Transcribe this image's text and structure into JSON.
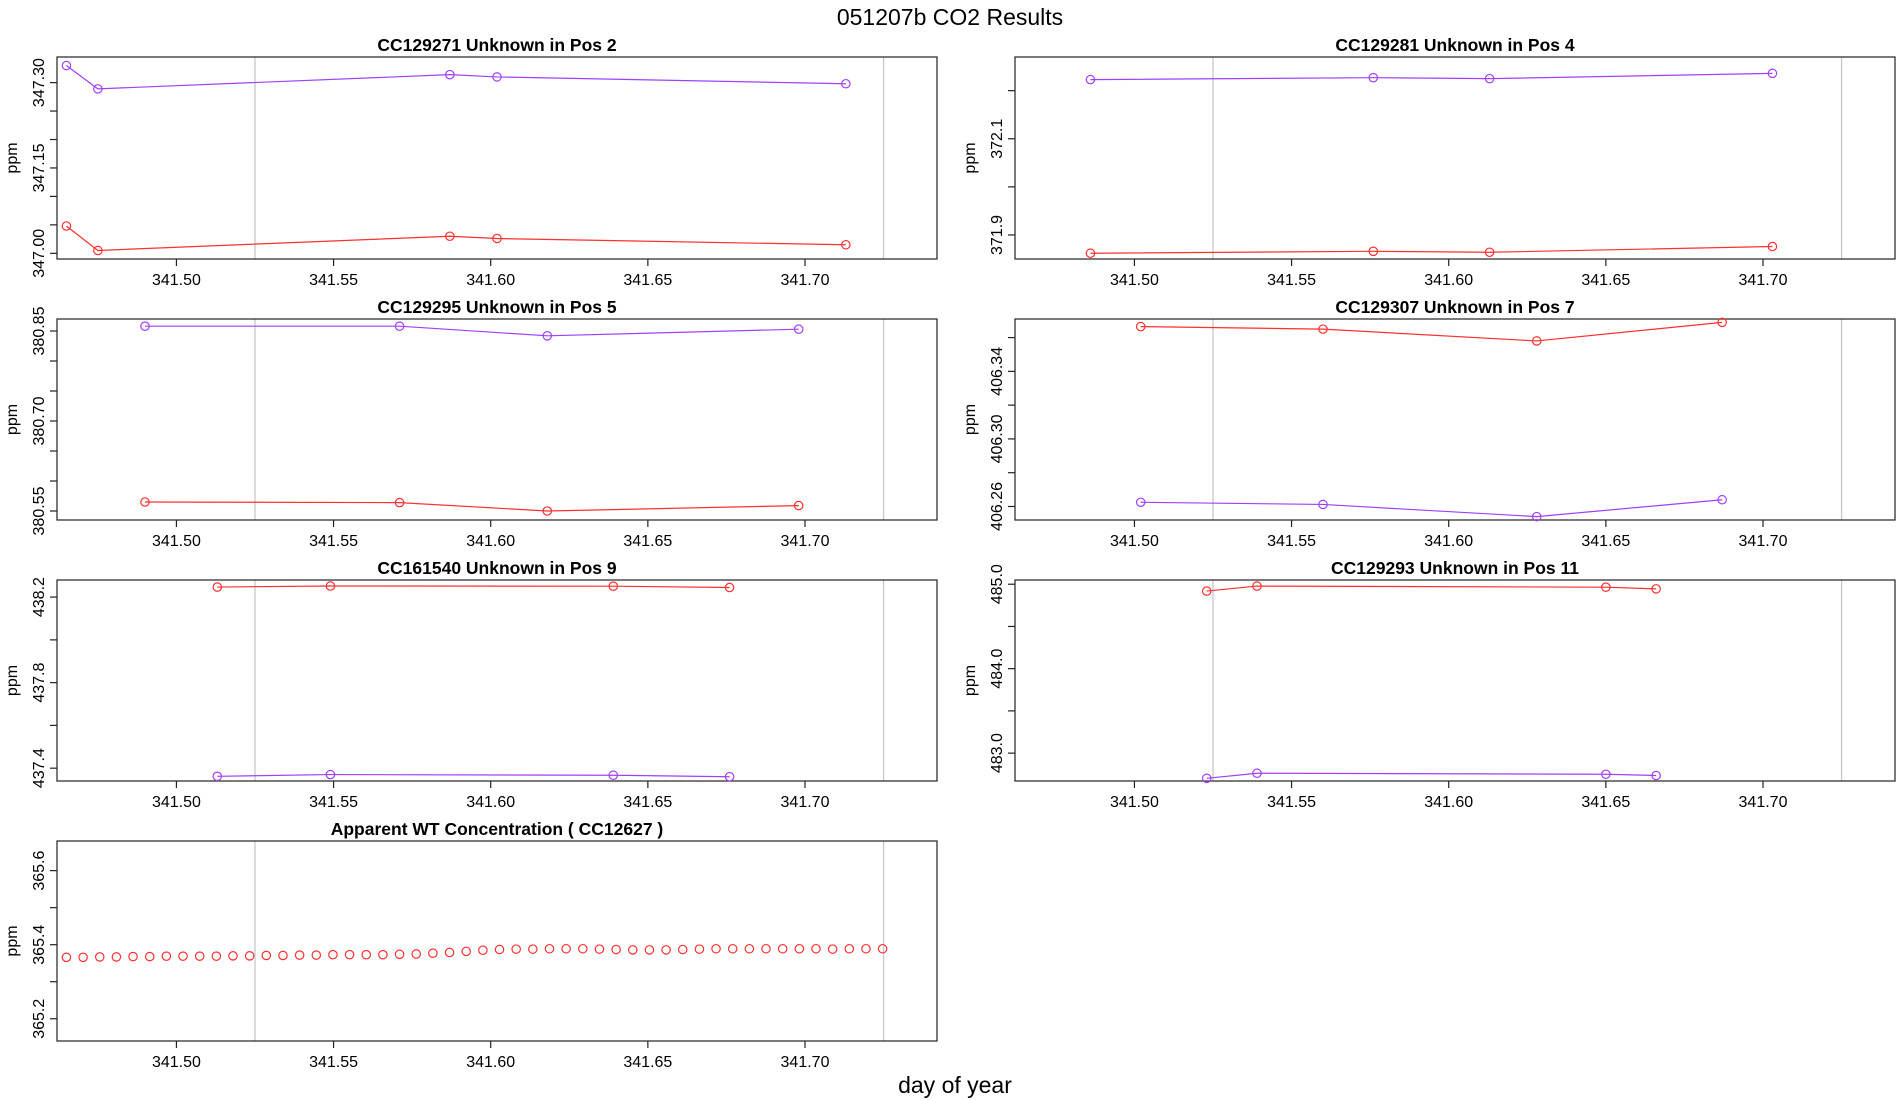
{
  "page_title": "051207b  CO2 Results",
  "x_axis_title": "day of year",
  "colors": {
    "red": "#ff3030",
    "purple": "#a040ff",
    "ref_line": "#c8c8c8"
  },
  "chart_data": [
    {
      "type": "line",
      "title": "CC129271    Unknown in Pos 2",
      "ylabel": "ppm",
      "xlim": [
        341.462,
        341.742
      ],
      "ylim": [
        346.99,
        347.345
      ],
      "x_ticks": [
        "341.50",
        "341.55",
        "341.60",
        "341.65",
        "341.70"
      ],
      "y_ticks": [
        "347.00",
        "347.15",
        "347.30"
      ],
      "y_minor_ticks": [
        347.05,
        347.1,
        347.2,
        347.25
      ],
      "ref_lines_x": [
        341.525,
        341.725
      ],
      "series": [
        {
          "color": "#a040ff",
          "x": [
            341.465,
            341.475,
            341.587,
            341.602,
            341.713
          ],
          "y": [
            347.33,
            347.289,
            347.314,
            347.31,
            347.298
          ]
        },
        {
          "color": "#ff3030",
          "x": [
            341.465,
            341.475,
            341.587,
            341.602,
            341.713
          ],
          "y": [
            347.048,
            347.005,
            347.03,
            347.026,
            347.015
          ]
        }
      ]
    },
    {
      "type": "line",
      "title": "CC129281    Unknown in Pos 4",
      "ylabel": "ppm",
      "xlim": [
        341.462,
        341.742
      ],
      "ylim": [
        371.85,
        372.27
      ],
      "x_ticks": [
        "341.50",
        "341.55",
        "341.60",
        "341.65",
        "341.70"
      ],
      "y_ticks": [
        "371.9",
        "372.1"
      ],
      "y_minor_ticks": [
        372.0,
        372.2
      ],
      "ref_lines_x": [
        341.525,
        341.725
      ],
      "series": [
        {
          "color": "#a040ff",
          "x": [
            341.486,
            341.576,
            341.613,
            341.703
          ],
          "y": [
            372.223,
            372.227,
            372.225,
            372.236
          ]
        },
        {
          "color": "#ff3030",
          "x": [
            341.486,
            341.576,
            341.613,
            341.703
          ],
          "y": [
            371.862,
            371.866,
            371.864,
            371.876
          ]
        }
      ]
    },
    {
      "type": "line",
      "title": "CC129295    Unknown in Pos 5",
      "ylabel": "ppm",
      "xlim": [
        341.462,
        341.742
      ],
      "ylim": [
        380.535,
        380.87
      ],
      "x_ticks": [
        "341.50",
        "341.55",
        "341.60",
        "341.65",
        "341.70"
      ],
      "y_ticks": [
        "380.55",
        "380.70",
        "380.85"
      ],
      "y_minor_ticks": [
        380.6,
        380.65,
        380.75,
        380.8
      ],
      "ref_lines_x": [
        341.525,
        341.725
      ],
      "series": [
        {
          "color": "#a040ff",
          "x": [
            341.49,
            341.571,
            341.618,
            341.698
          ],
          "y": [
            380.858,
            380.858,
            380.842,
            380.853
          ]
        },
        {
          "color": "#ff3030",
          "x": [
            341.49,
            341.571,
            341.618,
            341.698
          ],
          "y": [
            380.565,
            380.564,
            380.55,
            380.559
          ]
        }
      ]
    },
    {
      "type": "line",
      "title": "CC129307    Unknown in Pos 7",
      "ylabel": "ppm",
      "xlim": [
        341.462,
        341.742
      ],
      "ylim": [
        406.252,
        406.371
      ],
      "x_ticks": [
        "341.50",
        "341.55",
        "341.60",
        "341.65",
        "341.70"
      ],
      "y_ticks": [
        "406.26",
        "406.30",
        "406.34"
      ],
      "y_minor_ticks": [
        406.28,
        406.32,
        406.36
      ],
      "ref_lines_x": [
        341.525,
        341.725
      ],
      "series": [
        {
          "color": "#ff3030",
          "x": [
            341.502,
            341.56,
            341.628,
            341.687
          ],
          "y": [
            406.3665,
            406.365,
            406.358,
            406.369
          ]
        },
        {
          "color": "#a040ff",
          "x": [
            341.502,
            341.56,
            341.628,
            341.687
          ],
          "y": [
            406.2625,
            406.2612,
            406.254,
            406.264
          ]
        }
      ]
    },
    {
      "type": "line",
      "title": "CC161540    Unknown in Pos 9",
      "ylabel": "ppm",
      "xlim": [
        341.462,
        341.742
      ],
      "ylim": [
        437.34,
        438.28
      ],
      "x_ticks": [
        "341.50",
        "341.55",
        "341.60",
        "341.65",
        "341.70"
      ],
      "y_ticks": [
        "437.4",
        "437.8",
        "438.2"
      ],
      "y_minor_ticks": [
        437.6,
        438.0
      ],
      "ref_lines_x": [
        341.525,
        341.725
      ],
      "series": [
        {
          "color": "#ff3030",
          "x": [
            341.513,
            341.549,
            341.639,
            341.676
          ],
          "y": [
            438.247,
            438.252,
            438.251,
            438.245
          ]
        },
        {
          "color": "#a040ff",
          "x": [
            341.513,
            341.549,
            341.639,
            341.676
          ],
          "y": [
            437.362,
            437.37,
            437.367,
            437.36
          ]
        }
      ]
    },
    {
      "type": "line",
      "title": "CC129293    Unknown in Pos 11",
      "ylabel": "ppm",
      "xlim": [
        341.462,
        341.742
      ],
      "ylim": [
        482.67,
        485.05
      ],
      "x_ticks": [
        "341.50",
        "341.55",
        "341.60",
        "341.65",
        "341.70"
      ],
      "y_ticks": [
        "483.0",
        "484.0",
        "485.0"
      ],
      "y_minor_ticks": [
        483.5,
        484.5
      ],
      "ref_lines_x": [
        341.525,
        341.725
      ],
      "series": [
        {
          "color": "#ff3030",
          "x": [
            341.523,
            341.539,
            341.65,
            341.666
          ],
          "y": [
            484.919,
            484.978,
            484.965,
            484.945
          ]
        },
        {
          "color": "#a040ff",
          "x": [
            341.523,
            341.539,
            341.65,
            341.666
          ],
          "y": [
            482.702,
            482.762,
            482.75,
            482.735
          ]
        }
      ]
    },
    {
      "type": "scatter",
      "title": "Apparent WT Concentration ( CC12627 )",
      "ylabel": "ppm",
      "xlim": [
        341.462,
        341.742
      ],
      "ylim": [
        365.14,
        365.68
      ],
      "x_ticks": [
        "341.50",
        "341.55",
        "341.60",
        "341.65",
        "341.70"
      ],
      "y_ticks": [
        "365.2",
        "365.4",
        "365.6"
      ],
      "y_minor_ticks": [
        365.3,
        365.5
      ],
      "ref_lines_x": [
        341.525,
        341.725
      ],
      "series": [
        {
          "color": "#ff3030",
          "x": [
            341.465,
            341.4703,
            341.4756,
            341.4809,
            341.4862,
            341.4915,
            341.4968,
            341.5021,
            341.5074,
            341.5127,
            341.518,
            341.5233,
            341.5286,
            341.5339,
            341.5392,
            341.5445,
            341.5498,
            341.5551,
            341.5604,
            341.5657,
            341.571,
            341.5763,
            341.5816,
            341.5869,
            341.5922,
            341.5975,
            341.6028,
            341.6081,
            341.6134,
            341.6187,
            341.624,
            341.6293,
            341.6346,
            341.6399,
            341.6452,
            341.6505,
            341.6558,
            341.6611,
            341.6664,
            341.6717,
            341.677,
            341.6823,
            341.6876,
            341.6929,
            341.6982,
            341.7035,
            341.7088,
            341.7141,
            341.7194,
            341.7247
          ],
          "y": [
            365.366,
            365.366,
            365.367,
            365.367,
            365.368,
            365.368,
            365.369,
            365.369,
            365.369,
            365.369,
            365.37,
            365.37,
            365.371,
            365.371,
            365.372,
            365.372,
            365.373,
            365.373,
            365.373,
            365.373,
            365.374,
            365.375,
            365.377,
            365.379,
            365.382,
            365.385,
            365.387,
            365.388,
            365.388,
            365.389,
            365.389,
            365.389,
            365.388,
            365.387,
            365.386,
            365.386,
            365.386,
            365.387,
            365.388,
            365.389,
            365.389,
            365.389,
            365.389,
            365.389,
            365.389,
            365.389,
            365.388,
            365.389,
            365.389,
            365.389
          ]
        }
      ]
    }
  ]
}
